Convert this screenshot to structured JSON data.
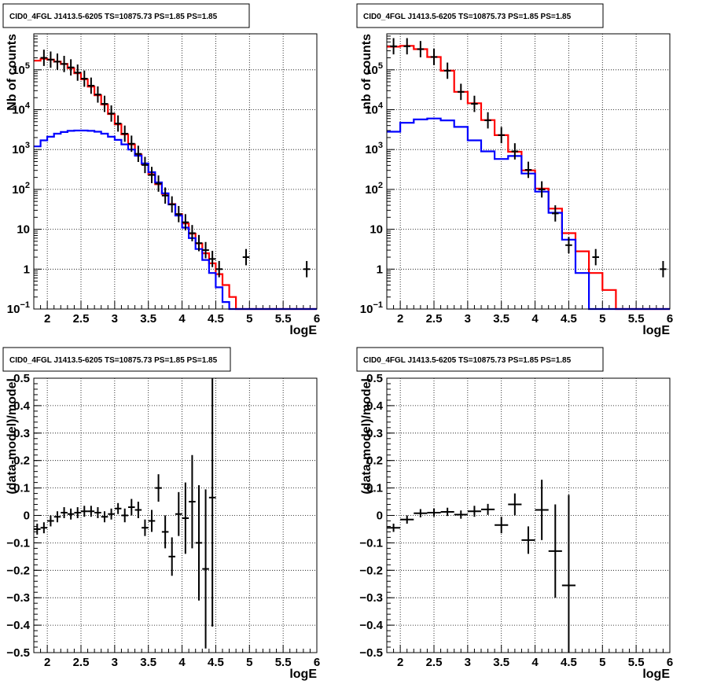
{
  "chart_data": [
    {
      "type": "line",
      "title": "CID0_4FGL J1413.5-6205 TS=10875.73 PS=1.85 PS=1.85",
      "xlabel": "logE",
      "ylabel": "Nb of counts",
      "yscale": "log",
      "xlim": [
        1.8,
        6.0
      ],
      "ylim": [
        0.1,
        800000
      ],
      "xticks": [
        2,
        2.5,
        3,
        3.5,
        4,
        4.5,
        5,
        5.5,
        6
      ],
      "xtick_labels": [
        "2",
        "2.5",
        "3",
        "3.5",
        "4",
        "4.5",
        "5",
        "5.5",
        "6"
      ],
      "yticks": [
        0.1,
        1,
        10,
        100,
        1000,
        10000,
        100000
      ],
      "ytick_labels": [
        "10^-1",
        "1",
        "10",
        "10^2",
        "10^3",
        "10^4",
        "10^5"
      ],
      "grid": true,
      "bin_edges": [
        1.8,
        1.9,
        2.0,
        2.1,
        2.2,
        2.3,
        2.4,
        2.5,
        2.6,
        2.7,
        2.8,
        2.9,
        3.0,
        3.1,
        3.2,
        3.3,
        3.4,
        3.5,
        3.6,
        3.7,
        3.8,
        3.9,
        4.0,
        4.1,
        4.2,
        4.3,
        4.4,
        4.5,
        4.6,
        4.7,
        4.8,
        4.9,
        5.0,
        5.1,
        5.2,
        5.3,
        5.4,
        5.5,
        5.6,
        5.7,
        5.8,
        5.9,
        6.0
      ],
      "series": [
        {
          "color": "#ff0000",
          "kind": "step",
          "values": [
            170000,
            190000,
            180000,
            160000,
            140000,
            110000,
            82000,
            58000,
            38000,
            23000,
            13500,
            7800,
            4300,
            2400,
            1350,
            750,
            430,
            240,
            135,
            77,
            43,
            24,
            14,
            7.8,
            4.4,
            2.5,
            1.4,
            0.75,
            0.4,
            0.2,
            0.1,
            0.1,
            0.1,
            0.1,
            0.1,
            0.1,
            0.1,
            0.1,
            0.1,
            0.1,
            0.1,
            0.1
          ]
        },
        {
          "color": "#0000ff",
          "kind": "step",
          "values": [
            1200,
            1700,
            2100,
            2500,
            2750,
            2950,
            3000,
            3000,
            2950,
            2800,
            2500,
            2100,
            1750,
            1350,
            1000,
            700,
            450,
            270,
            150,
            80,
            42,
            22,
            11,
            6,
            3.2,
            1.7,
            0.8,
            0.35,
            0.15,
            0.1,
            0.1,
            0.1,
            0.1,
            0.1,
            0.1,
            0.1,
            0.1,
            0.1,
            0.1,
            0.1,
            0.1,
            0.1
          ]
        }
      ],
      "points": [
        {
          "x": 1.95,
          "y": 200000
        },
        {
          "x": 2.05,
          "y": 180000
        },
        {
          "x": 2.15,
          "y": 160000
        },
        {
          "x": 2.25,
          "y": 140000
        },
        {
          "x": 2.35,
          "y": 115000
        },
        {
          "x": 2.45,
          "y": 85000
        },
        {
          "x": 2.55,
          "y": 60000
        },
        {
          "x": 2.65,
          "y": 40000
        },
        {
          "x": 2.75,
          "y": 24000
        },
        {
          "x": 2.85,
          "y": 14000
        },
        {
          "x": 2.95,
          "y": 8000
        },
        {
          "x": 3.05,
          "y": 4500
        },
        {
          "x": 3.15,
          "y": 2500
        },
        {
          "x": 3.25,
          "y": 1400
        },
        {
          "x": 3.35,
          "y": 780
        },
        {
          "x": 3.45,
          "y": 410
        },
        {
          "x": 3.55,
          "y": 230
        },
        {
          "x": 3.65,
          "y": 140
        },
        {
          "x": 3.75,
          "y": 70
        },
        {
          "x": 3.85,
          "y": 42
        },
        {
          "x": 3.95,
          "y": 24
        },
        {
          "x": 4.05,
          "y": 15
        },
        {
          "x": 4.15,
          "y": 8
        },
        {
          "x": 4.25,
          "y": 4.5
        },
        {
          "x": 4.35,
          "y": 3
        },
        {
          "x": 4.45,
          "y": 1.8
        },
        {
          "x": 4.55,
          "y": 1
        },
        {
          "x": 4.95,
          "y": 2
        },
        {
          "x": 5.85,
          "y": 1
        }
      ]
    },
    {
      "type": "line",
      "title": "CID0_4FGL J1413.5-6205 TS=10875.73 PS=1.85 PS=1.85",
      "xlabel": "logE",
      "ylabel": "nb of counts",
      "yscale": "log",
      "xlim": [
        1.8,
        6.0
      ],
      "ylim": [
        0.1,
        800000
      ],
      "xticks": [
        2,
        2.5,
        3,
        3.5,
        4,
        4.5,
        5,
        5.5,
        6
      ],
      "xtick_labels": [
        "2",
        "2.5",
        "3",
        "3.5",
        "4",
        "4.5",
        "5",
        "5.5",
        "6"
      ],
      "yticks": [
        0.1,
        1,
        10,
        100,
        1000,
        10000,
        100000
      ],
      "ytick_labels": [
        "10^-1",
        "1",
        "10",
        "10^2",
        "10^3",
        "10^4",
        "10^5"
      ],
      "grid": true,
      "bin_edges": [
        1.8,
        2.0,
        2.2,
        2.4,
        2.6,
        2.8,
        3.0,
        3.2,
        3.4,
        3.6,
        3.8,
        4.0,
        4.2,
        4.4,
        4.6,
        4.8,
        5.0,
        5.2,
        5.4,
        5.6,
        5.8,
        6.0
      ],
      "series": [
        {
          "color": "#ff0000",
          "kind": "step",
          "values": [
            380000,
            400000,
            330000,
            210000,
            95000,
            28000,
            14500,
            5500,
            2300,
            880,
            300,
            105,
            33,
            8,
            2.8,
            0.8,
            0.3,
            0.1,
            0.1,
            0.1,
            0.1
          ]
        },
        {
          "color": "#0000ff",
          "kind": "step",
          "values": [
            2800,
            4700,
            5700,
            6000,
            5400,
            3700,
            1700,
            900,
            580,
            690,
            250,
            88,
            26,
            5.5,
            0.8,
            0.1,
            0.1,
            0.1,
            0.1,
            0.1,
            0.1
          ]
        }
      ],
      "points": [
        {
          "x": 1.9,
          "y": 390000
        },
        {
          "x": 2.1,
          "y": 390000
        },
        {
          "x": 2.3,
          "y": 330000
        },
        {
          "x": 2.5,
          "y": 210000
        },
        {
          "x": 2.7,
          "y": 95000
        },
        {
          "x": 2.9,
          "y": 28000
        },
        {
          "x": 3.1,
          "y": 14000
        },
        {
          "x": 3.3,
          "y": 5400
        },
        {
          "x": 3.5,
          "y": 2300
        },
        {
          "x": 3.7,
          "y": 900
        },
        {
          "x": 3.9,
          "y": 310
        },
        {
          "x": 4.1,
          "y": 100
        },
        {
          "x": 4.3,
          "y": 25
        },
        {
          "x": 4.5,
          "y": 4
        },
        {
          "x": 4.9,
          "y": 2
        },
        {
          "x": 5.9,
          "y": 1
        }
      ]
    },
    {
      "type": "scatter",
      "title": "CID0_4FGL J1413.5-6205 TS=10875.73 PS=1.85 PS=1.85",
      "xlabel": "logE",
      "ylabel": "(data-model)/model",
      "xlim": [
        1.8,
        6.0
      ],
      "ylim": [
        -0.5,
        0.5
      ],
      "xticks": [
        2,
        2.5,
        3,
        3.5,
        4,
        4.5,
        5,
        5.5,
        6
      ],
      "xtick_labels": [
        "2",
        "2.5",
        "3",
        "3.5",
        "4",
        "4.5",
        "5",
        "5.5",
        "6"
      ],
      "yticks": [
        -0.5,
        -0.4,
        -0.3,
        -0.2,
        -0.1,
        0,
        0.1,
        0.2,
        0.3,
        0.4,
        0.5
      ],
      "ytick_labels": [
        "−0.5",
        "−0.4",
        "−0.3",
        "−0.2",
        "−0.1",
        "0",
        "0.1",
        "0.2",
        "0.3",
        "0.4",
        "0.5"
      ],
      "grid": true,
      "xerr": 0.05,
      "points": [
        {
          "x": 1.85,
          "y": -0.05,
          "err": 0.02
        },
        {
          "x": 1.95,
          "y": -0.045,
          "err": 0.02
        },
        {
          "x": 2.05,
          "y": -0.02,
          "err": 0.02
        },
        {
          "x": 2.15,
          "y": -0.005,
          "err": 0.02
        },
        {
          "x": 2.25,
          "y": 0.01,
          "err": 0.02
        },
        {
          "x": 2.35,
          "y": 0.005,
          "err": 0.02
        },
        {
          "x": 2.45,
          "y": 0.01,
          "err": 0.02
        },
        {
          "x": 2.55,
          "y": 0.015,
          "err": 0.02
        },
        {
          "x": 2.65,
          "y": 0.015,
          "err": 0.02
        },
        {
          "x": 2.75,
          "y": 0.01,
          "err": 0.02
        },
        {
          "x": 2.85,
          "y": -0.005,
          "err": 0.02
        },
        {
          "x": 2.95,
          "y": 0.005,
          "err": 0.02
        },
        {
          "x": 3.05,
          "y": 0.025,
          "err": 0.02
        },
        {
          "x": 3.15,
          "y": 0.0,
          "err": 0.025
        },
        {
          "x": 3.25,
          "y": 0.03,
          "err": 0.03
        },
        {
          "x": 3.35,
          "y": 0.02,
          "err": 0.03
        },
        {
          "x": 3.45,
          "y": -0.045,
          "err": 0.03
        },
        {
          "x": 3.55,
          "y": -0.02,
          "err": 0.04
        },
        {
          "x": 3.65,
          "y": 0.1,
          "err": 0.05
        },
        {
          "x": 3.75,
          "y": -0.06,
          "err": 0.06
        },
        {
          "x": 3.85,
          "y": -0.15,
          "err": 0.07
        },
        {
          "x": 3.95,
          "y": 0.005,
          "err": 0.08
        },
        {
          "x": 4.05,
          "y": -0.01,
          "err": 0.13
        },
        {
          "x": 4.15,
          "y": 0.05,
          "err": 0.17
        },
        {
          "x": 4.25,
          "y": -0.1,
          "err": 0.21
        },
        {
          "x": 4.35,
          "y": -0.195,
          "err": 0.29
        },
        {
          "x": 4.45,
          "y": 0.065,
          "err": 0.47
        }
      ]
    },
    {
      "type": "scatter",
      "title": "CID0_4FGL J1413.5-6205 TS=10875.73 PS=1.85 PS=1.85",
      "xlabel": "logE",
      "ylabel": "(data-model)/model",
      "xlim": [
        1.8,
        6.0
      ],
      "ylim": [
        -0.5,
        0.5
      ],
      "xticks": [
        2,
        2.5,
        3,
        3.5,
        4,
        4.5,
        5,
        5.5,
        6
      ],
      "xtick_labels": [
        "2",
        "2.5",
        "3",
        "3.5",
        "4",
        "4.5",
        "5",
        "5.5",
        "6"
      ],
      "yticks": [
        -0.5,
        -0.4,
        -0.3,
        -0.2,
        -0.1,
        0,
        0.1,
        0.2,
        0.3,
        0.4,
        0.5
      ],
      "ytick_labels": [
        "−0.5",
        "−0.4",
        "−0.3",
        "−0.2",
        "−0.1",
        "0",
        "0.1",
        "0.2",
        "0.3",
        "0.4",
        "0.5"
      ],
      "grid": true,
      "xerr": 0.1,
      "points": [
        {
          "x": 1.9,
          "y": -0.045,
          "err": 0.015
        },
        {
          "x": 2.1,
          "y": -0.015,
          "err": 0.015
        },
        {
          "x": 2.3,
          "y": 0.008,
          "err": 0.015
        },
        {
          "x": 2.5,
          "y": 0.01,
          "err": 0.015
        },
        {
          "x": 2.7,
          "y": 0.013,
          "err": 0.015
        },
        {
          "x": 2.9,
          "y": 0.003,
          "err": 0.015
        },
        {
          "x": 3.1,
          "y": 0.015,
          "err": 0.02
        },
        {
          "x": 3.3,
          "y": 0.022,
          "err": 0.02
        },
        {
          "x": 3.5,
          "y": -0.035,
          "err": 0.03
        },
        {
          "x": 3.7,
          "y": 0.04,
          "err": 0.04
        },
        {
          "x": 3.9,
          "y": -0.09,
          "err": 0.05
        },
        {
          "x": 4.1,
          "y": 0.02,
          "err": 0.11
        },
        {
          "x": 4.3,
          "y": -0.13,
          "err": 0.17
        },
        {
          "x": 4.5,
          "y": -0.255,
          "err": 0.33
        }
      ]
    }
  ]
}
